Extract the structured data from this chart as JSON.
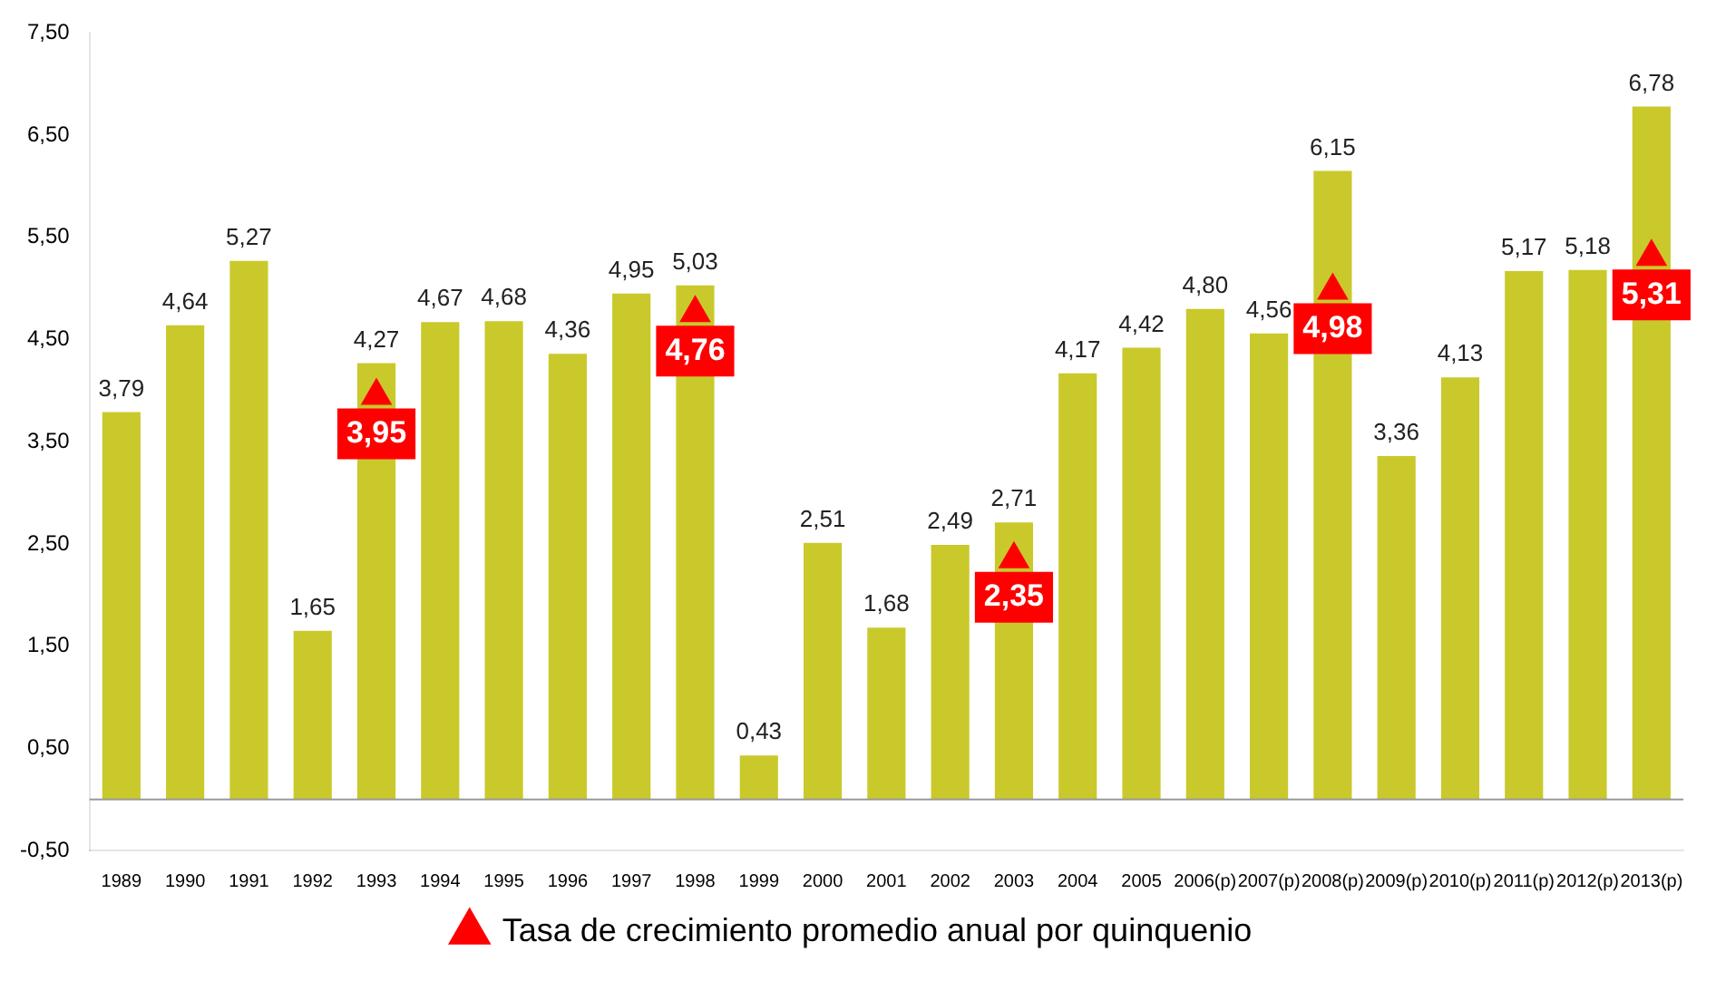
{
  "chart_data": {
    "type": "bar",
    "categories": [
      "1989",
      "1990",
      "1991",
      "1992",
      "1993",
      "1994",
      "1995",
      "1996",
      "1997",
      "1998",
      "1999",
      "2000",
      "2001",
      "2002",
      "2003",
      "2004",
      "2005",
      "2006(p)",
      "2007(p)",
      "2008(p)",
      "2009(p)",
      "2010(p)",
      "2011(p)",
      "2012(p)",
      "2013(p)"
    ],
    "series": [
      {
        "color": "#c9c92c",
        "values": [
          3.79,
          4.64,
          5.27,
          1.65,
          4.27,
          4.67,
          4.68,
          4.36,
          4.95,
          5.03,
          0.43,
          2.51,
          1.68,
          2.49,
          2.71,
          4.17,
          4.42,
          4.8,
          4.56,
          6.15,
          3.36,
          4.13,
          5.17,
          5.18,
          6.78
        ],
        "value_labels": [
          "3,79",
          "4,64",
          "5,27",
          "1,65",
          "4,27",
          "4,67",
          "4,68",
          "4,36",
          "4,95",
          "5,03",
          "0,43",
          "2,51",
          "1,68",
          "2,49",
          "2,71",
          "4,17",
          "4,42",
          "4,80",
          "4,56",
          "6,15",
          "3,36",
          "4,13",
          "5,17",
          "5,18",
          "6,78"
        ]
      },
      {
        "type": "scatter",
        "name": "Tasa de crecimiento promedio anual por quinquenio",
        "color": "#ff0000",
        "marker": "triangle",
        "values": [
          null,
          null,
          null,
          null,
          3.95,
          null,
          null,
          null,
          null,
          4.76,
          null,
          null,
          null,
          null,
          2.35,
          null,
          null,
          null,
          null,
          4.98,
          null,
          null,
          null,
          null,
          5.31
        ],
        "value_labels": [
          null,
          null,
          null,
          null,
          "3,95",
          null,
          null,
          null,
          null,
          "4,76",
          null,
          null,
          null,
          null,
          "2,35",
          null,
          null,
          null,
          null,
          "4,98",
          null,
          null,
          null,
          null,
          "5,31"
        ]
      }
    ],
    "ylim": [
      -0.5,
      7.5
    ],
    "yticks": [
      {
        "value": -0.5,
        "label": "-0,50"
      },
      {
        "value": 0.5,
        "label": "0,50"
      },
      {
        "value": 1.5,
        "label": "1,50"
      },
      {
        "value": 2.5,
        "label": "2,50"
      },
      {
        "value": 3.5,
        "label": "3,50"
      },
      {
        "value": 4.5,
        "label": "4,50"
      },
      {
        "value": 5.5,
        "label": "5,50"
      },
      {
        "value": 6.5,
        "label": "6,50"
      },
      {
        "value": 7.5,
        "label": "7,50"
      }
    ],
    "grid": false,
    "legend": "bottom"
  }
}
